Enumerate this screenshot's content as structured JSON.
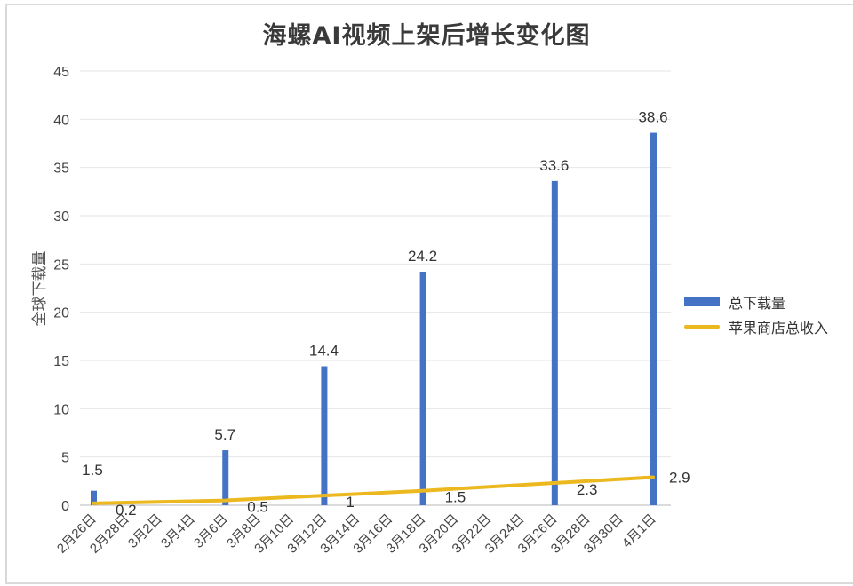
{
  "chart_data": {
    "type": "bar+line",
    "title": "海螺AI视频上架后增长变化图",
    "xlabel": "",
    "ylabel": "全球下载量",
    "ylim": [
      0,
      45
    ],
    "yticks": [
      0,
      5,
      10,
      15,
      20,
      25,
      30,
      35,
      40,
      45
    ],
    "grid": true,
    "legend_position": "right",
    "categories": [
      "2月26日",
      "2月28日",
      "3月2日",
      "3月4日",
      "3月6日",
      "3月8日",
      "3月10日",
      "3月12日",
      "3月14日",
      "3月16日",
      "3月18日",
      "3月20日",
      "3月22日",
      "3月24日",
      "3月26日",
      "3月28日",
      "3月30日",
      "4月1日"
    ],
    "series": [
      {
        "name": "总下载量",
        "type": "bar",
        "color": "#4472c4",
        "points": [
          {
            "category": "2月26日",
            "value": 1.5
          },
          {
            "category": "3月6日",
            "value": 5.7
          },
          {
            "category": "3月12日",
            "value": 14.4
          },
          {
            "category": "3月18日",
            "value": 24.2
          },
          {
            "category": "3月26日",
            "value": 33.6
          },
          {
            "category": "4月1日",
            "value": 38.6
          }
        ]
      },
      {
        "name": "苹果商店总收入",
        "type": "line",
        "color": "#ecb820",
        "points": [
          {
            "category": "2月26日",
            "value": 0.2
          },
          {
            "category": "3月6日",
            "value": 0.5
          },
          {
            "category": "3月12日",
            "value": 1
          },
          {
            "category": "3月18日",
            "value": 1.5
          },
          {
            "category": "3月26日",
            "value": 2.3
          },
          {
            "category": "4月1日",
            "value": 2.9
          }
        ]
      }
    ]
  },
  "labels": {
    "title": "海螺AI视频上架后增长变化图",
    "ylabel": "全球下载量",
    "legend_bar": "总下载量",
    "legend_line": "苹果商店总收入"
  }
}
